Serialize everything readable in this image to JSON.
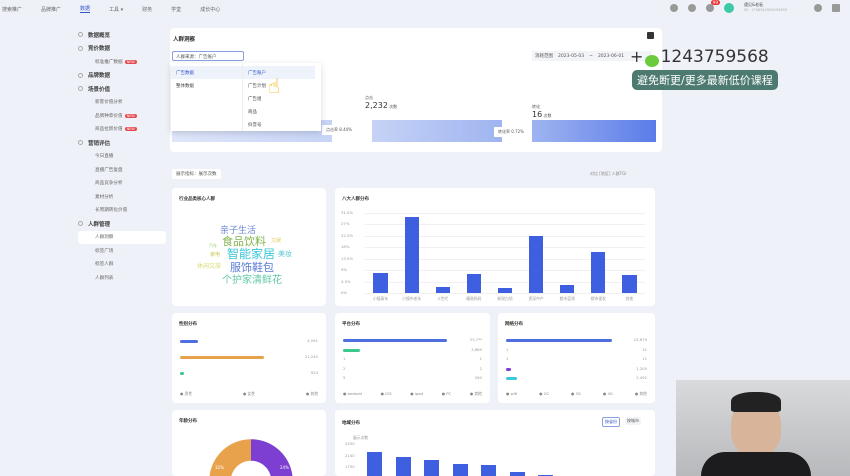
{
  "topnav": {
    "items": [
      "搜索推广",
      "品牌推广",
      "数据",
      "工具 ▾",
      "财务",
      "学堂",
      "成长中心"
    ],
    "active": 2
  },
  "header": {
    "messages_badge": "99",
    "account_name": "遇见&老板",
    "account_id": "ID：1746342929093490"
  },
  "sidebar": {
    "items": [
      {
        "label": "数据概览",
        "type": "group"
      },
      {
        "label": "竞价数据",
        "type": "group"
      },
      {
        "label": "标准推广数据",
        "type": "sub",
        "tag": "NEW"
      },
      {
        "label": "品牌数据",
        "type": "group"
      },
      {
        "label": "场景价值",
        "type": "group"
      },
      {
        "label": "新客价值分析",
        "type": "sub"
      },
      {
        "label": "品牌种草价值",
        "type": "sub",
        "tag": "NEW"
      },
      {
        "label": "商品拉新价值",
        "type": "sub",
        "tag": "NEW"
      },
      {
        "label": "营销评估",
        "type": "group"
      },
      {
        "label": "今日直播",
        "type": "sub"
      },
      {
        "label": "直播广告复盘",
        "type": "sub"
      },
      {
        "label": "商品竞争分析",
        "type": "sub"
      },
      {
        "label": "素材分析",
        "type": "sub"
      },
      {
        "label": "长周期转化价值",
        "type": "sub"
      },
      {
        "label": "人群管理",
        "type": "group"
      },
      {
        "label": "人群洞察",
        "type": "sub",
        "selected": true
      },
      {
        "label": "标签广场",
        "type": "sub"
      },
      {
        "label": "标签人群",
        "type": "sub"
      },
      {
        "label": "人群列表",
        "type": "sub"
      }
    ]
  },
  "main": {
    "title": "人群洞察",
    "source_select": "人群来源：广告账户",
    "date_label": "消耗范围",
    "date_start": "2023-05-03",
    "date_end": "2023-06-01",
    "dropdown": {
      "left": [
        "广告数据",
        "整体数据"
      ],
      "right": [
        "广告账户",
        "广告计划",
        "广告组",
        "商品",
        "抖音号"
      ]
    },
    "funnel": {
      "click_label": "点击",
      "click_value": "2,232",
      "click_unit": "次数",
      "convert_label": "转化",
      "convert_value": "16",
      "convert_unit": "次数",
      "rate1": "点击率 8.44%",
      "rate2": "转化率 0.72%"
    },
    "filter": {
      "label": "展示指标：展示次数",
      "right": "对比 [地区] 人群TGI"
    },
    "wordcloud": {
      "title": "行业品类核心人群",
      "words": [
        "亲子生活",
        "食品饮料",
        "智能家居",
        "服饰鞋包",
        "个护家清鲜花",
        "美妆",
        "文娱",
        "汽车",
        "家电",
        "休闲文旅"
      ]
    },
    "eight": {
      "title": "八大人群分布"
    },
    "gender": {
      "title": "性别分布",
      "values": [
        "4,591",
        "21,240",
        "924"
      ],
      "legend": [
        "男性",
        "女性",
        "其他"
      ],
      "fractions": [
        0.15,
        0.7,
        0.03
      ],
      "colors": [
        "#4f6ee0",
        "#e8a24c",
        "#3cc98a"
      ]
    },
    "platform": {
      "title": "平台分布",
      "values": [
        "23,7**",
        "3,880",
        "1",
        "2",
        "260"
      ],
      "labels": [
        "",
        "",
        "1",
        "2",
        "5"
      ],
      "legend": [
        "android",
        "iOS",
        "ipad",
        "PC",
        "其他"
      ],
      "fractions": [
        0.87,
        0.14,
        0,
        0,
        0
      ],
      "colors": [
        "#4f6ee0",
        "#3cc98a"
      ]
    },
    "network": {
      "title": "网络分布",
      "values": [
        "23,679",
        "31",
        "11",
        "1,200",
        "2,492"
      ],
      "labels": [
        "",
        "1",
        "1",
        "",
        ""
      ],
      "legend": [
        "wifi",
        "2G",
        "3G",
        "4G",
        "其他"
      ],
      "fractions": [
        0.88,
        0,
        0,
        0.04,
        0.09
      ],
      "colors": [
        "#4f6ee0",
        "#888",
        "#888",
        "#7d3fd1",
        "#3cc9e0"
      ]
    },
    "age": {
      "title": "年龄分布",
      "labels": [
        "32%",
        "24%"
      ]
    },
    "region": {
      "title": "地域分布",
      "ylabel": "展示次数",
      "buttons": [
        "按省份",
        "按城市"
      ]
    }
  },
  "chart_data": [
    {
      "type": "bar",
      "title": "八大人群分布",
      "categories": [
        "小镇青年",
        "小镇中老年",
        "Z世代",
        "精致妈妈",
        "新锐白领",
        "资深中产",
        "都市蓝领",
        "都市银发",
        "其他"
      ],
      "values": [
        8,
        30,
        2.5,
        7.5,
        2,
        22.5,
        3,
        16,
        7
      ],
      "yticks": [
        "0%",
        "4.5%",
        "9%",
        "13.5%",
        "18%",
        "22.5%",
        "27%",
        "31.5%"
      ],
      "ylim": [
        0,
        31.5
      ]
    },
    {
      "type": "bar",
      "title": "地域分布",
      "ylabel": "展示次数",
      "values": [
        2200,
        2050,
        1950,
        1850,
        1800,
        1600,
        1500
      ],
      "yticks": [
        "1750",
        "2100",
        "2450"
      ],
      "ylim": [
        1400,
        2450
      ]
    }
  ],
  "overlay": {
    "number": "1243759568",
    "tagline": "避免断更/更多最新低价课程"
  }
}
